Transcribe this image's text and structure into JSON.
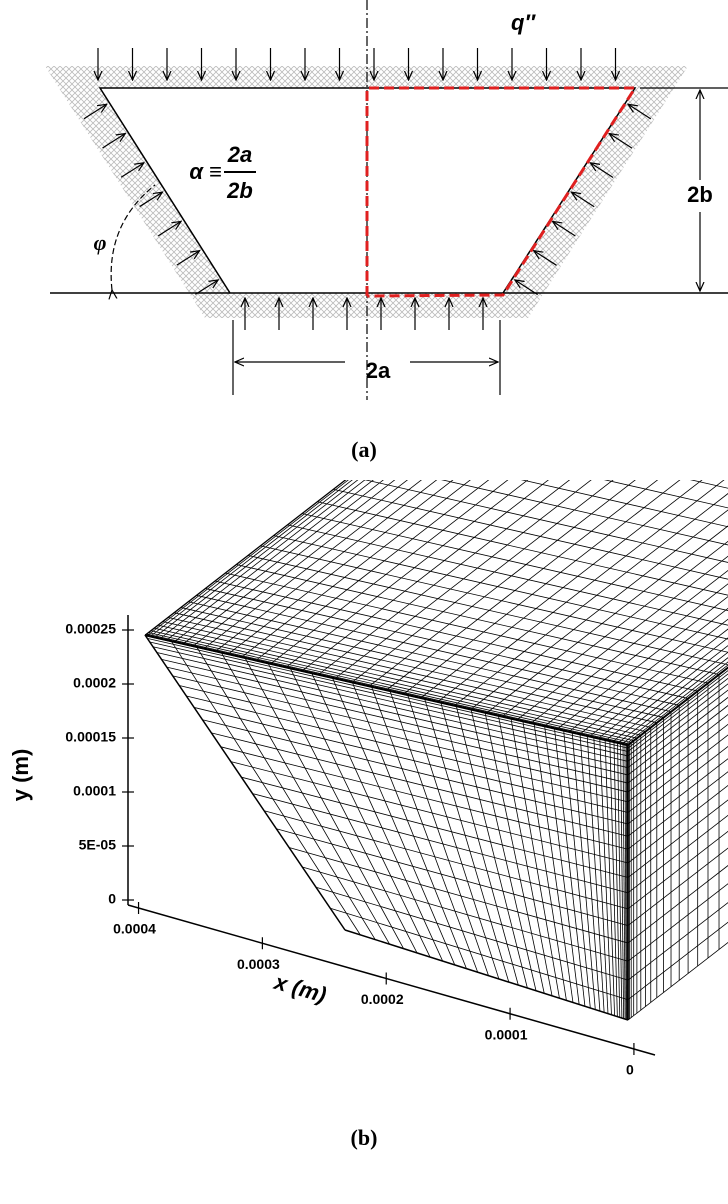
{
  "panel_a": {
    "label": "(a)",
    "heat_flux": "q″",
    "aspect_ratio": {
      "symbol": "α ≡",
      "numerator": "2a",
      "denominator": "2b"
    },
    "angle": "φ",
    "height": "2b",
    "width": "2a"
  },
  "panel_b": {
    "label": "(b)",
    "y_axis": {
      "title": "y (m)",
      "ticks": [
        "0",
        "5E-05",
        "0.0001",
        "0.00015",
        "0.0002",
        "0.00025"
      ]
    },
    "x_axis": {
      "title": "x (m)",
      "ticks": [
        "0.0004",
        "0.0003",
        "0.0002",
        "0.0001",
        "0"
      ]
    }
  }
}
